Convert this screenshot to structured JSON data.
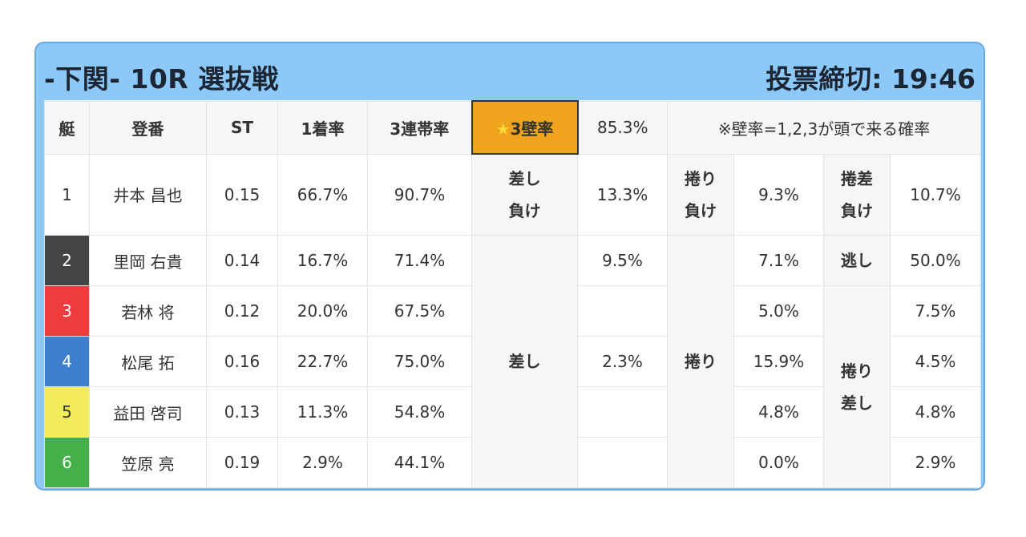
{
  "header": {
    "title": "-下関- 10R 選抜戦",
    "deadline": "投票締切: 19:46"
  },
  "columns": {
    "boat": "艇",
    "reg": "登番",
    "st": "ST",
    "first_rate": "1着率",
    "trio_rate": "3連帯率",
    "star": "★",
    "wall_label": "3壁率",
    "wall_value": "85.3%",
    "note": "※壁率=1,2,3が頭で来る確率"
  },
  "labels": {
    "sashi_make_1": "差し",
    "sashi_make_2": "負け",
    "makuri_make_1": "捲り",
    "makuri_make_2": "負け",
    "makusa_make_1": "捲差",
    "makusa_make_2": "負け",
    "nige": "逃し",
    "sashi": "差し",
    "makuri": "捲り",
    "makuri_sashi_1": "捲り",
    "makuri_sashi_2": "差し"
  },
  "rows": [
    {
      "boat": "1",
      "name": "井本 昌也",
      "st": "0.15",
      "first": "66.7%",
      "trio": "90.7%",
      "c1": "13.3%",
      "c2": "9.3%",
      "c3": "10.7%"
    },
    {
      "boat": "2",
      "name": "里岡 右貴",
      "st": "0.14",
      "first": "16.7%",
      "trio": "71.4%",
      "c1": "9.5%",
      "c2": "7.1%",
      "c3": "50.0%"
    },
    {
      "boat": "3",
      "name": "若林 将",
      "st": "0.12",
      "first": "20.0%",
      "trio": "67.5%",
      "c1": "",
      "c2": "5.0%",
      "c3": "7.5%"
    },
    {
      "boat": "4",
      "name": "松尾 拓",
      "st": "0.16",
      "first": "22.7%",
      "trio": "75.0%",
      "c1": "2.3%",
      "c2": "15.9%",
      "c3": "4.5%"
    },
    {
      "boat": "5",
      "name": "益田 啓司",
      "st": "0.13",
      "first": "11.3%",
      "trio": "54.8%",
      "c1": "",
      "c2": "4.8%",
      "c3": "4.8%"
    },
    {
      "boat": "6",
      "name": "笠原 亮",
      "st": "0.19",
      "first": "2.9%",
      "trio": "44.1%",
      "c1": "",
      "c2": "0.0%",
      "c3": "2.9%"
    }
  ],
  "colors": {
    "card_bg": "#8cc8f8",
    "star_cell": "#f0a31c",
    "boat2": "#444444",
    "boat3": "#ee3b3b",
    "boat4": "#3f7fcf",
    "boat5": "#f2ec5c",
    "boat6": "#45b049"
  }
}
